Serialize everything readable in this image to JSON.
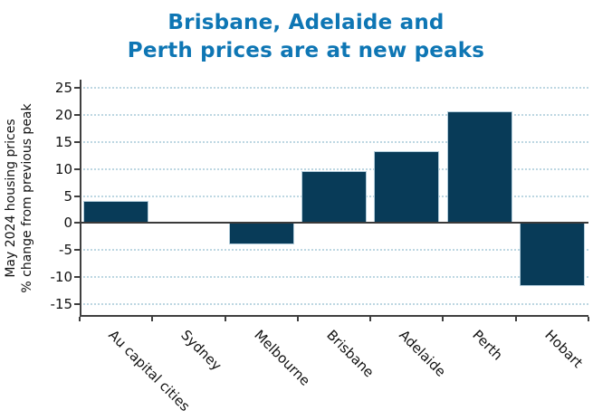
{
  "title_lines": [
    "Brisbane, Adelaide and",
    "Perth prices are at new peaks"
  ],
  "colors": {
    "title": "#0e76b4",
    "bar_fill": "#083b58",
    "bar_edge": "#b3cddb",
    "gridline": "#bdd7e2",
    "axis": "#3f3f3f",
    "tick_label": "#111111"
  },
  "chart_data": {
    "type": "bar",
    "title": "Brisbane, Adelaide and Perth prices are at new peaks",
    "ylabel_lines": [
      "May 2024 housing prices",
      "% change from previous peak"
    ],
    "ylabel": "May 2024 housing prices % change from previous peak",
    "xlabel": "",
    "categories": [
      "Au capital cities",
      "Sydney",
      "Melbourne",
      "Brisbane",
      "Adelaide",
      "Perth",
      "Hobart"
    ],
    "values": [
      4.0,
      0.0,
      -4.0,
      9.6,
      13.2,
      20.7,
      -11.6
    ],
    "yticks": [
      -15,
      -10,
      -5,
      0,
      5,
      10,
      15,
      20,
      25
    ],
    "ylim": [
      -17,
      26.5
    ],
    "grid": "horizontal dotted gridlines at each ytick",
    "legend": "none",
    "x_tick_marks": "at category boundaries",
    "x_label_rotation_deg": 45
  }
}
